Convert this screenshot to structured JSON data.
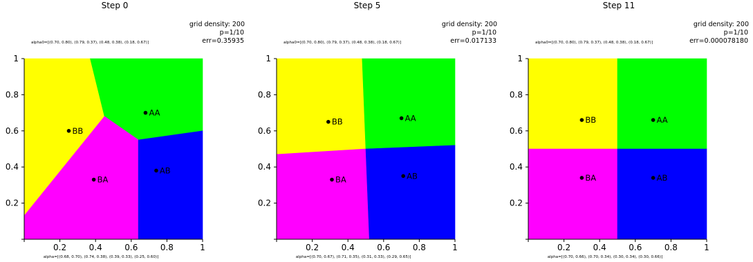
{
  "chart_data": [
    {
      "type": "voronoi",
      "title": "Step 0",
      "info": [
        "grid density: 200",
        "p=1/10",
        "err=0.35935"
      ],
      "alpha0_label": "alpha0=[(0.70, 0.80), (0.79, 0.37), (0.48, 0.38), (0.18, 0.67)]",
      "alpha_label": "alpha=[(0.68, 0.70), (0.74, 0.38), (0.39, 0.33), (0.25, 0.60)]",
      "xlim": [
        0,
        1
      ],
      "ylim": [
        0,
        1
      ],
      "xticks": [
        "0.2",
        "0.4",
        "0.6",
        "0.8",
        "1"
      ],
      "yticks": [
        "0.2",
        "0.4",
        "0.6",
        "0.8",
        "1"
      ],
      "regions": [
        {
          "name": "BB",
          "color": "#ffff00",
          "polygon": [
            [
              0,
              1
            ],
            [
              0.37,
              1
            ],
            [
              0.45,
              0.68
            ],
            [
              0,
              0.13
            ]
          ]
        },
        {
          "name": "AA",
          "color": "#00ff00",
          "polygon": [
            [
              0.37,
              1
            ],
            [
              1,
              1
            ],
            [
              1,
              0.6
            ],
            [
              0.64,
              0.55
            ],
            [
              0.45,
              0.68
            ]
          ]
        },
        {
          "name": "BA",
          "color": "#ff00ff",
          "polygon": [
            [
              0,
              0.13
            ],
            [
              0.45,
              0.68
            ],
            [
              0.64,
              0.55
            ],
            [
              0.64,
              0
            ],
            [
              0,
              0
            ]
          ]
        },
        {
          "name": "AB",
          "color": "#0000ff",
          "polygon": [
            [
              0.64,
              0.55
            ],
            [
              1,
              0.6
            ],
            [
              1,
              0
            ],
            [
              0.64,
              0
            ]
          ]
        }
      ],
      "points": [
        {
          "label": "AA",
          "x": 0.68,
          "y": 0.7
        },
        {
          "label": "AB",
          "x": 0.74,
          "y": 0.38
        },
        {
          "label": "BA",
          "x": 0.39,
          "y": 0.33
        },
        {
          "label": "BB",
          "x": 0.25,
          "y": 0.6
        }
      ]
    },
    {
      "type": "voronoi",
      "title": "Step 5",
      "info": [
        "grid density: 200",
        "p=1/10",
        "err=0.017133"
      ],
      "alpha0_label": "alpha0=[(0.70, 0.80), (0.79, 0.37), (0.48, 0.38), (0.18, 0.67)]",
      "alpha_label": "alpha=[(0.70, 0.67), (0.71, 0.35), (0.31, 0.33), (0.29, 0.65)]",
      "xlim": [
        0,
        1
      ],
      "ylim": [
        0,
        1
      ],
      "xticks": [
        "0.2",
        "0.4",
        "0.6",
        "0.8",
        "1"
      ],
      "yticks": [
        "0.2",
        "0.4",
        "0.6",
        "0.8",
        "1"
      ],
      "regions": [
        {
          "name": "BB",
          "color": "#ffff00",
          "polygon": [
            [
              0,
              1
            ],
            [
              0.48,
              1
            ],
            [
              0.5,
              0.5
            ],
            [
              0,
              0.47
            ]
          ]
        },
        {
          "name": "AA",
          "color": "#00ff00",
          "polygon": [
            [
              0.48,
              1
            ],
            [
              1,
              1
            ],
            [
              1,
              0.52
            ],
            [
              0.5,
              0.5
            ]
          ]
        },
        {
          "name": "BA",
          "color": "#ff00ff",
          "polygon": [
            [
              0,
              0.47
            ],
            [
              0.5,
              0.5
            ],
            [
              0.52,
              0
            ],
            [
              0,
              0
            ]
          ]
        },
        {
          "name": "AB",
          "color": "#0000ff",
          "polygon": [
            [
              0.5,
              0.5
            ],
            [
              1,
              0.52
            ],
            [
              1,
              0
            ],
            [
              0.52,
              0
            ]
          ]
        }
      ],
      "points": [
        {
          "label": "AA",
          "x": 0.7,
          "y": 0.67
        },
        {
          "label": "AB",
          "x": 0.71,
          "y": 0.35
        },
        {
          "label": "BA",
          "x": 0.31,
          "y": 0.33
        },
        {
          "label": "BB",
          "x": 0.29,
          "y": 0.65
        }
      ]
    },
    {
      "type": "voronoi",
      "title": "Step 11",
      "info": [
        "grid density: 200",
        "p=1/10",
        "err=0.000078180"
      ],
      "alpha0_label": "alpha0=[(0.70, 0.80), (0.79, 0.37), (0.48, 0.38), (0.18, 0.67)]",
      "alpha_label": "alpha=[(0.70, 0.66), (0.70, 0.34), (0.30, 0.34), (0.30, 0.66)]",
      "xlim": [
        0,
        1
      ],
      "ylim": [
        0,
        1
      ],
      "xticks": [
        "0.2",
        "0.4",
        "0.6",
        "0.8",
        "1"
      ],
      "yticks": [
        "0.2",
        "0.4",
        "0.6",
        "0.8",
        "1"
      ],
      "regions": [
        {
          "name": "BB",
          "color": "#ffff00",
          "polygon": [
            [
              0,
              1
            ],
            [
              0.5,
              1
            ],
            [
              0.5,
              0.5
            ],
            [
              0,
              0.5
            ]
          ]
        },
        {
          "name": "AA",
          "color": "#00ff00",
          "polygon": [
            [
              0.5,
              1
            ],
            [
              1,
              1
            ],
            [
              1,
              0.5
            ],
            [
              0.5,
              0.5
            ]
          ]
        },
        {
          "name": "BA",
          "color": "#ff00ff",
          "polygon": [
            [
              0,
              0.5
            ],
            [
              0.5,
              0.5
            ],
            [
              0.5,
              0
            ],
            [
              0,
              0
            ]
          ]
        },
        {
          "name": "AB",
          "color": "#0000ff",
          "polygon": [
            [
              0.5,
              0.5
            ],
            [
              1,
              0.5
            ],
            [
              1,
              0
            ],
            [
              0.5,
              0
            ]
          ]
        }
      ],
      "points": [
        {
          "label": "AA",
          "x": 0.7,
          "y": 0.66
        },
        {
          "label": "AB",
          "x": 0.7,
          "y": 0.34
        },
        {
          "label": "BA",
          "x": 0.3,
          "y": 0.34
        },
        {
          "label": "BB",
          "x": 0.3,
          "y": 0.66
        }
      ]
    }
  ]
}
